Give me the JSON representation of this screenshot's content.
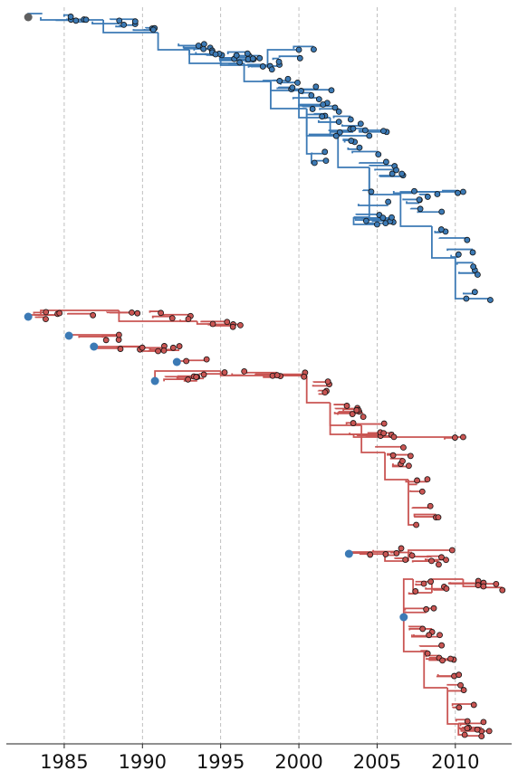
{
  "chart_data": {
    "type": "phylogenetic-tree",
    "title": "",
    "xlabel": "",
    "ylabel": "",
    "x_axis": {
      "ticks": [
        1985,
        1990,
        1995,
        2000,
        2005,
        2010
      ],
      "tick_labels": [
        "1985",
        "1990",
        "1995",
        "2000",
        "2005",
        "2010"
      ],
      "range": [
        1981.3,
        2013.6
      ],
      "gridlines": "vertical dashed at major ticks"
    },
    "colors": {
      "blue_clade": "#3c7ab5",
      "red_clade": "#c95553",
      "root": "#606060"
    },
    "root": {
      "x": 1982.7,
      "color": "root"
    },
    "blue_clade": {
      "span_x": [
        1982.7,
        2011.2
      ],
      "description_points": [
        {
          "x": 1983.5
        },
        {
          "x": 1987.9
        },
        {
          "x": 1989.4
        },
        {
          "x": 1991.1
        },
        {
          "x": 1994.0
        },
        {
          "x": 1995.8
        },
        {
          "x": 1998.0
        },
        {
          "x": 1999.9
        },
        {
          "x": 2000.8
        },
        {
          "x": 2002.4
        },
        {
          "x": 2004.6
        },
        {
          "x": 2005.7
        },
        {
          "x": 2007.8
        },
        {
          "x": 2009.8
        },
        {
          "x": 2010.9
        }
      ]
    },
    "red_clade": {
      "span_x": [
        1982.7,
        2012.1
      ],
      "roots": [
        {
          "x": 1982.7
        },
        {
          "x": 1985.3
        },
        {
          "x": 1986.9
        },
        {
          "x": 1992.2
        },
        {
          "x": 1990.8
        },
        {
          "x": 2003.2
        },
        {
          "x": 2006.7
        }
      ]
    }
  }
}
